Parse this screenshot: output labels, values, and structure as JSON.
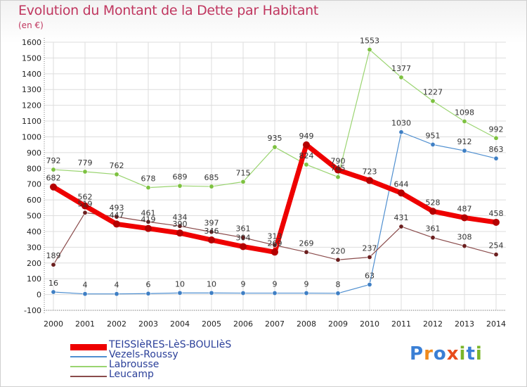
{
  "header": {
    "title": "Evolution du Montant de la Dette par Habitant",
    "unit": "(en €)"
  },
  "logo": {
    "text": "Proxiti",
    "letters": [
      {
        "ch": "P",
        "color": "#3a7fd5"
      },
      {
        "ch": "r",
        "color": "#f08a1c"
      },
      {
        "ch": "o",
        "color": "#3a7fd5"
      },
      {
        "ch": "x",
        "color": "#e84c1c"
      },
      {
        "ch": "i",
        "color": "#7ab529"
      },
      {
        "ch": "t",
        "color": "#3a7fd5"
      },
      {
        "ch": "i",
        "color": "#7ab529"
      }
    ]
  },
  "chart_data": {
    "type": "line",
    "title": "Evolution du Montant de la Dette par Habitant",
    "ylabel": "(en €)",
    "xlabel": "",
    "x": [
      "2000",
      "2001",
      "2002",
      "2003",
      "2004",
      "2005",
      "2006",
      "2007",
      "2008",
      "2009",
      "2010",
      "2011",
      "2012",
      "2013",
      "2014"
    ],
    "ylim": [
      -100,
      1600
    ],
    "yticks": [
      -100,
      0,
      100,
      200,
      300,
      400,
      500,
      600,
      700,
      800,
      900,
      1000,
      1100,
      1200,
      1300,
      1400,
      1500,
      1600
    ],
    "grid": true,
    "legend_position": "bottom-left",
    "series": [
      {
        "name": "Vezels-Roussy",
        "color": "#4f8fd0",
        "dot": "#3f7fc4",
        "width": 1.2,
        "values": [
          16,
          4,
          4,
          6,
          10,
          10,
          9,
          9,
          9,
          8,
          63,
          1030,
          951,
          912,
          863
        ]
      },
      {
        "name": "Labrousse",
        "color": "#9ad470",
        "dot": "#7dc140",
        "width": 1.2,
        "values": [
          792,
          779,
          762,
          678,
          689,
          685,
          715,
          935,
          824,
          745,
          1553,
          1377,
          1227,
          1098,
          992
        ]
      },
      {
        "name": "Leucamp",
        "color": "#8a4b4b",
        "dot": "#6b1f1f",
        "width": 1.2,
        "values": [
          189,
          519,
          493,
          461,
          434,
          397,
          361,
          313,
          269,
          220,
          237,
          431,
          361,
          308,
          254
        ]
      },
      {
        "name": "TEISSIèRES-LèS-BOULIèS",
        "color": "#ee0000",
        "dot": "#b40000",
        "width": 7,
        "values": [
          682,
          562,
          447,
          419,
          390,
          346,
          304,
          269,
          949,
          790,
          723,
          644,
          528,
          487,
          458
        ]
      }
    ],
    "labels": [
      {
        "year": "2000",
        "series": "Labrousse",
        "text": "792"
      },
      {
        "year": "2000",
        "series": "TEISSIèRES-LèS-BOULIèS",
        "text": "682"
      },
      {
        "year": "2000",
        "series": "Leucamp",
        "text": "189"
      },
      {
        "year": "2000",
        "series": "Vezels-Roussy",
        "text": "16"
      },
      {
        "year": "2001",
        "series": "Labrousse",
        "text": "779"
      },
      {
        "year": "2001",
        "series": "TEISSIèRES-LèS-BOULIèS",
        "text": "562"
      },
      {
        "year": "2001",
        "series": "Leucamp",
        "text": "519"
      },
      {
        "year": "2001",
        "series": "Vezels-Roussy",
        "text": "4"
      },
      {
        "year": "2002",
        "series": "Labrousse",
        "text": "762"
      },
      {
        "year": "2002",
        "series": "Leucamp",
        "text": "493"
      },
      {
        "year": "2002",
        "series": "TEISSIèRES-LèS-BOULIèS",
        "text": "447"
      },
      {
        "year": "2002",
        "series": "Vezels-Roussy",
        "text": "4"
      },
      {
        "year": "2003",
        "series": "Labrousse",
        "text": "678"
      },
      {
        "year": "2003",
        "series": "Leucamp",
        "text": "461"
      },
      {
        "year": "2003",
        "series": "TEISSIèRES-LèS-BOULIèS",
        "text": "419"
      },
      {
        "year": "2003",
        "series": "Vezels-Roussy",
        "text": "6"
      },
      {
        "year": "2004",
        "series": "Labrousse",
        "text": "689"
      },
      {
        "year": "2004",
        "series": "Leucamp",
        "text": "434"
      },
      {
        "year": "2004",
        "series": "TEISSIèRES-LèS-BOULIèS",
        "text": "390"
      },
      {
        "year": "2004",
        "series": "Vezels-Roussy",
        "text": "10"
      },
      {
        "year": "2005",
        "series": "Labrousse",
        "text": "685"
      },
      {
        "year": "2005",
        "series": "Leucamp",
        "text": "397"
      },
      {
        "year": "2005",
        "series": "TEISSIèRES-LèS-BOULIèS",
        "text": "346"
      },
      {
        "year": "2005",
        "series": "Vezels-Roussy",
        "text": "10"
      },
      {
        "year": "2006",
        "series": "Labrousse",
        "text": "715"
      },
      {
        "year": "2006",
        "series": "Leucamp",
        "text": "361"
      },
      {
        "year": "2006",
        "series": "TEISSIèRES-LèS-BOULIèS",
        "text": "304"
      },
      {
        "year": "2006",
        "series": "Vezels-Roussy",
        "text": "9"
      },
      {
        "year": "2007",
        "series": "Labrousse",
        "text": "935"
      },
      {
        "year": "2007",
        "series": "Leucamp",
        "text": "313"
      },
      {
        "year": "2007",
        "series": "TEISSIèRES-LèS-BOULIèS",
        "text": "269"
      },
      {
        "year": "2007",
        "series": "Vezels-Roussy",
        "text": "9"
      },
      {
        "year": "2008",
        "series": "TEISSIèRES-LèS-BOULIèS",
        "text": "949"
      },
      {
        "year": "2008",
        "series": "Labrousse",
        "text": "824"
      },
      {
        "year": "2008",
        "series": "Leucamp",
        "text": "269"
      },
      {
        "year": "2008",
        "series": "Vezels-Roussy",
        "text": "9"
      },
      {
        "year": "2009",
        "series": "TEISSIèRES-LèS-BOULIèS",
        "text": "790"
      },
      {
        "year": "2009",
        "series": "Labrousse",
        "text": "745"
      },
      {
        "year": "2009",
        "series": "Leucamp",
        "text": "220"
      },
      {
        "year": "2009",
        "series": "Vezels-Roussy",
        "text": "8"
      },
      {
        "year": "2010",
        "series": "Labrousse",
        "text": "1553"
      },
      {
        "year": "2010",
        "series": "TEISSIèRES-LèS-BOULIèS",
        "text": "723"
      },
      {
        "year": "2010",
        "series": "Leucamp",
        "text": "237"
      },
      {
        "year": "2010",
        "series": "Vezels-Roussy",
        "text": "63"
      },
      {
        "year": "2011",
        "series": "Labrousse",
        "text": "1377"
      },
      {
        "year": "2011",
        "series": "Vezels-Roussy",
        "text": "1030"
      },
      {
        "year": "2011",
        "series": "TEISSIèRES-LèS-BOULIèS",
        "text": "644"
      },
      {
        "year": "2011",
        "series": "Leucamp",
        "text": "431"
      },
      {
        "year": "2012",
        "series": "Labrousse",
        "text": "1227"
      },
      {
        "year": "2012",
        "series": "Vezels-Roussy",
        "text": "951"
      },
      {
        "year": "2012",
        "series": "TEISSIèRES-LèS-BOULIèS",
        "text": "528"
      },
      {
        "year": "2012",
        "series": "Leucamp",
        "text": "361"
      },
      {
        "year": "2013",
        "series": "Labrousse",
        "text": "1098"
      },
      {
        "year": "2013",
        "series": "Vezels-Roussy",
        "text": "912"
      },
      {
        "year": "2013",
        "series": "TEISSIèRES-LèS-BOULIèS",
        "text": "487"
      },
      {
        "year": "2013",
        "series": "Leucamp",
        "text": "308"
      },
      {
        "year": "2014",
        "series": "Labrousse",
        "text": "992"
      },
      {
        "year": "2014",
        "series": "Vezels-Roussy",
        "text": "863"
      },
      {
        "year": "2014",
        "series": "TEISSIèRES-LèS-BOULIèS",
        "text": "458"
      },
      {
        "year": "2014",
        "series": "Leucamp",
        "text": "254"
      }
    ],
    "legend": [
      {
        "name": "TEISSIèRES-LèS-BOULIèS",
        "color": "#ee0000",
        "thick": true
      },
      {
        "name": "Vezels-Roussy",
        "color": "#4f8fd0",
        "thick": false
      },
      {
        "name": "Labrousse",
        "color": "#9ad470",
        "thick": false
      },
      {
        "name": "Leucamp",
        "color": "#8a4b4b",
        "thick": false
      }
    ]
  }
}
